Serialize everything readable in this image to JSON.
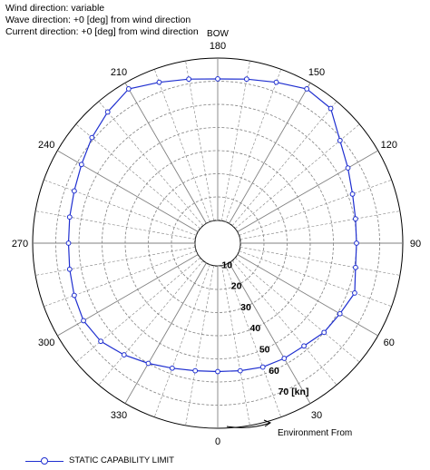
{
  "header": {
    "line1": "Wind direction: variable",
    "line2": "Wave direction: +0 [deg] from wind direction",
    "line3": "Current direction: +0 [deg] from wind direction"
  },
  "bow_label": "BOW",
  "environment_label": "Environment From",
  "legend_label": "STATIC CAPABILITY LIMIT",
  "colors": {
    "series": "#1f2fd0",
    "grid": "#808080"
  },
  "chart_data": {
    "type": "polar-line",
    "angle_unit": "deg",
    "angle_ticks": [
      "0",
      "30",
      "60",
      "90",
      "120",
      "150",
      "180",
      "210",
      "240",
      "270",
      "300",
      "330"
    ],
    "radial_ticks": [
      "10",
      "20",
      "30",
      "40",
      "50",
      "60",
      "70 [kn]"
    ],
    "r_range": [
      0,
      80
    ],
    "series": [
      {
        "name": "STATIC CAPABILITY LIMIT",
        "points": [
          [
            0,
            55.5
          ],
          [
            10,
            56
          ],
          [
            20,
            57
          ],
          [
            30,
            57.5
          ],
          [
            40,
            58
          ],
          [
            50,
            60
          ],
          [
            60,
            61
          ],
          [
            70,
            63
          ],
          [
            80,
            60.5
          ],
          [
            90,
            60
          ],
          [
            100,
            60.5
          ],
          [
            110,
            62
          ],
          [
            120,
            65
          ],
          [
            130,
            69
          ],
          [
            140,
            76
          ],
          [
            150,
            77
          ],
          [
            160,
            74
          ],
          [
            170,
            72
          ],
          [
            180,
            71
          ],
          [
            190,
            72
          ],
          [
            200,
            74
          ],
          [
            210,
            77
          ],
          [
            220,
            74
          ],
          [
            230,
            71
          ],
          [
            240,
            68
          ],
          [
            250,
            66
          ],
          [
            260,
            65
          ],
          [
            270,
            64.5
          ],
          [
            280,
            65
          ],
          [
            290,
            66
          ],
          [
            300,
            67
          ],
          [
            310,
            66
          ],
          [
            320,
            63
          ],
          [
            330,
            60
          ],
          [
            340,
            57.5
          ],
          [
            350,
            56
          ]
        ]
      }
    ],
    "grid": true
  }
}
